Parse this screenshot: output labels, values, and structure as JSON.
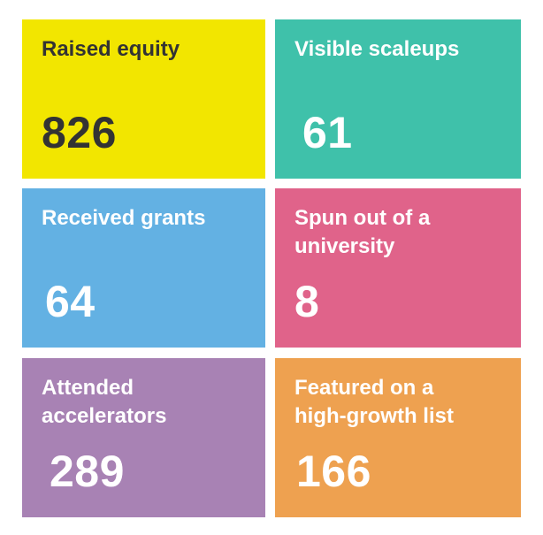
{
  "tiles": [
    {
      "label": "Raised equity",
      "value": "826",
      "bg": "#F2E600",
      "label_color": "#333333",
      "value_color": "#333333"
    },
    {
      "label": "Visible scaleups",
      "value": "61",
      "bg": "#3FC1AA",
      "label_color": "#FFFFFF",
      "value_color": "#FFFFFF"
    },
    {
      "label": "Received grants",
      "value": "64",
      "bg": "#63B1E3",
      "label_color": "#FFFFFF",
      "value_color": "#FFFFFF"
    },
    {
      "label": "Spun out of a\nuniversity",
      "value": "8",
      "bg": "#E0638A",
      "label_color": "#FFFFFF",
      "value_color": "#FFFFFF"
    },
    {
      "label": "Attended\naccelerators",
      "value": "289",
      "bg": "#A882B4",
      "label_color": "#FFFFFF",
      "value_color": "#FFFFFF"
    },
    {
      "label": "Featured on a\nhigh-growth list",
      "value": "166",
      "bg": "#EEA150",
      "label_color": "#FFFFFF",
      "value_color": "#FFFFFF"
    }
  ]
}
